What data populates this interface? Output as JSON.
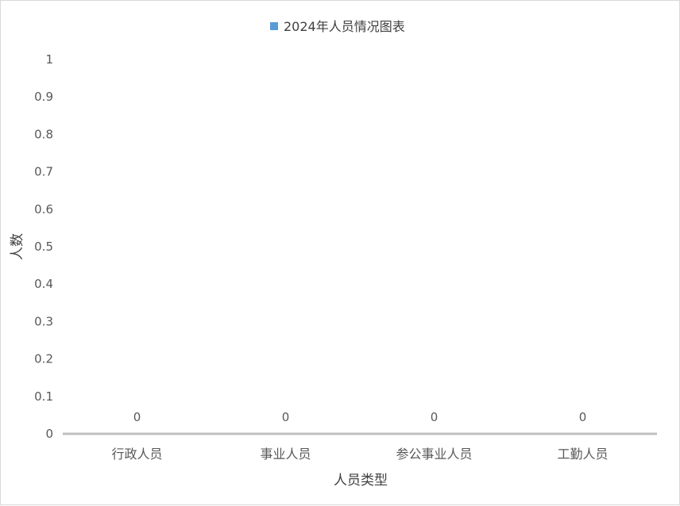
{
  "chart_data": {
    "type": "bar",
    "legend": "2024年人员情况图表",
    "legend_position": "top",
    "categories": [
      "行政人员",
      "事业人员",
      "参公事业人员",
      "工勤人员"
    ],
    "series": [
      {
        "name": "2024年人员情况图表",
        "values": [
          0,
          0,
          0,
          0
        ]
      }
    ],
    "data_labels": [
      "0",
      "0",
      "0",
      "0"
    ],
    "xlabel": "人员类型",
    "ylabel": "人数",
    "ylim": [
      0,
      1
    ],
    "yticks": [
      0,
      0.1,
      0.2,
      0.3,
      0.4,
      0.5,
      0.6,
      0.7,
      0.8,
      0.9,
      1
    ],
    "ytick_labels": [
      "0",
      "0.1",
      "0.2",
      "0.3",
      "0.4",
      "0.5",
      "0.6",
      "0.7",
      "0.8",
      "0.9",
      "1"
    ],
    "grid": false,
    "series_color": "#5b9bd5",
    "axis_color": "#bfbfbf"
  }
}
